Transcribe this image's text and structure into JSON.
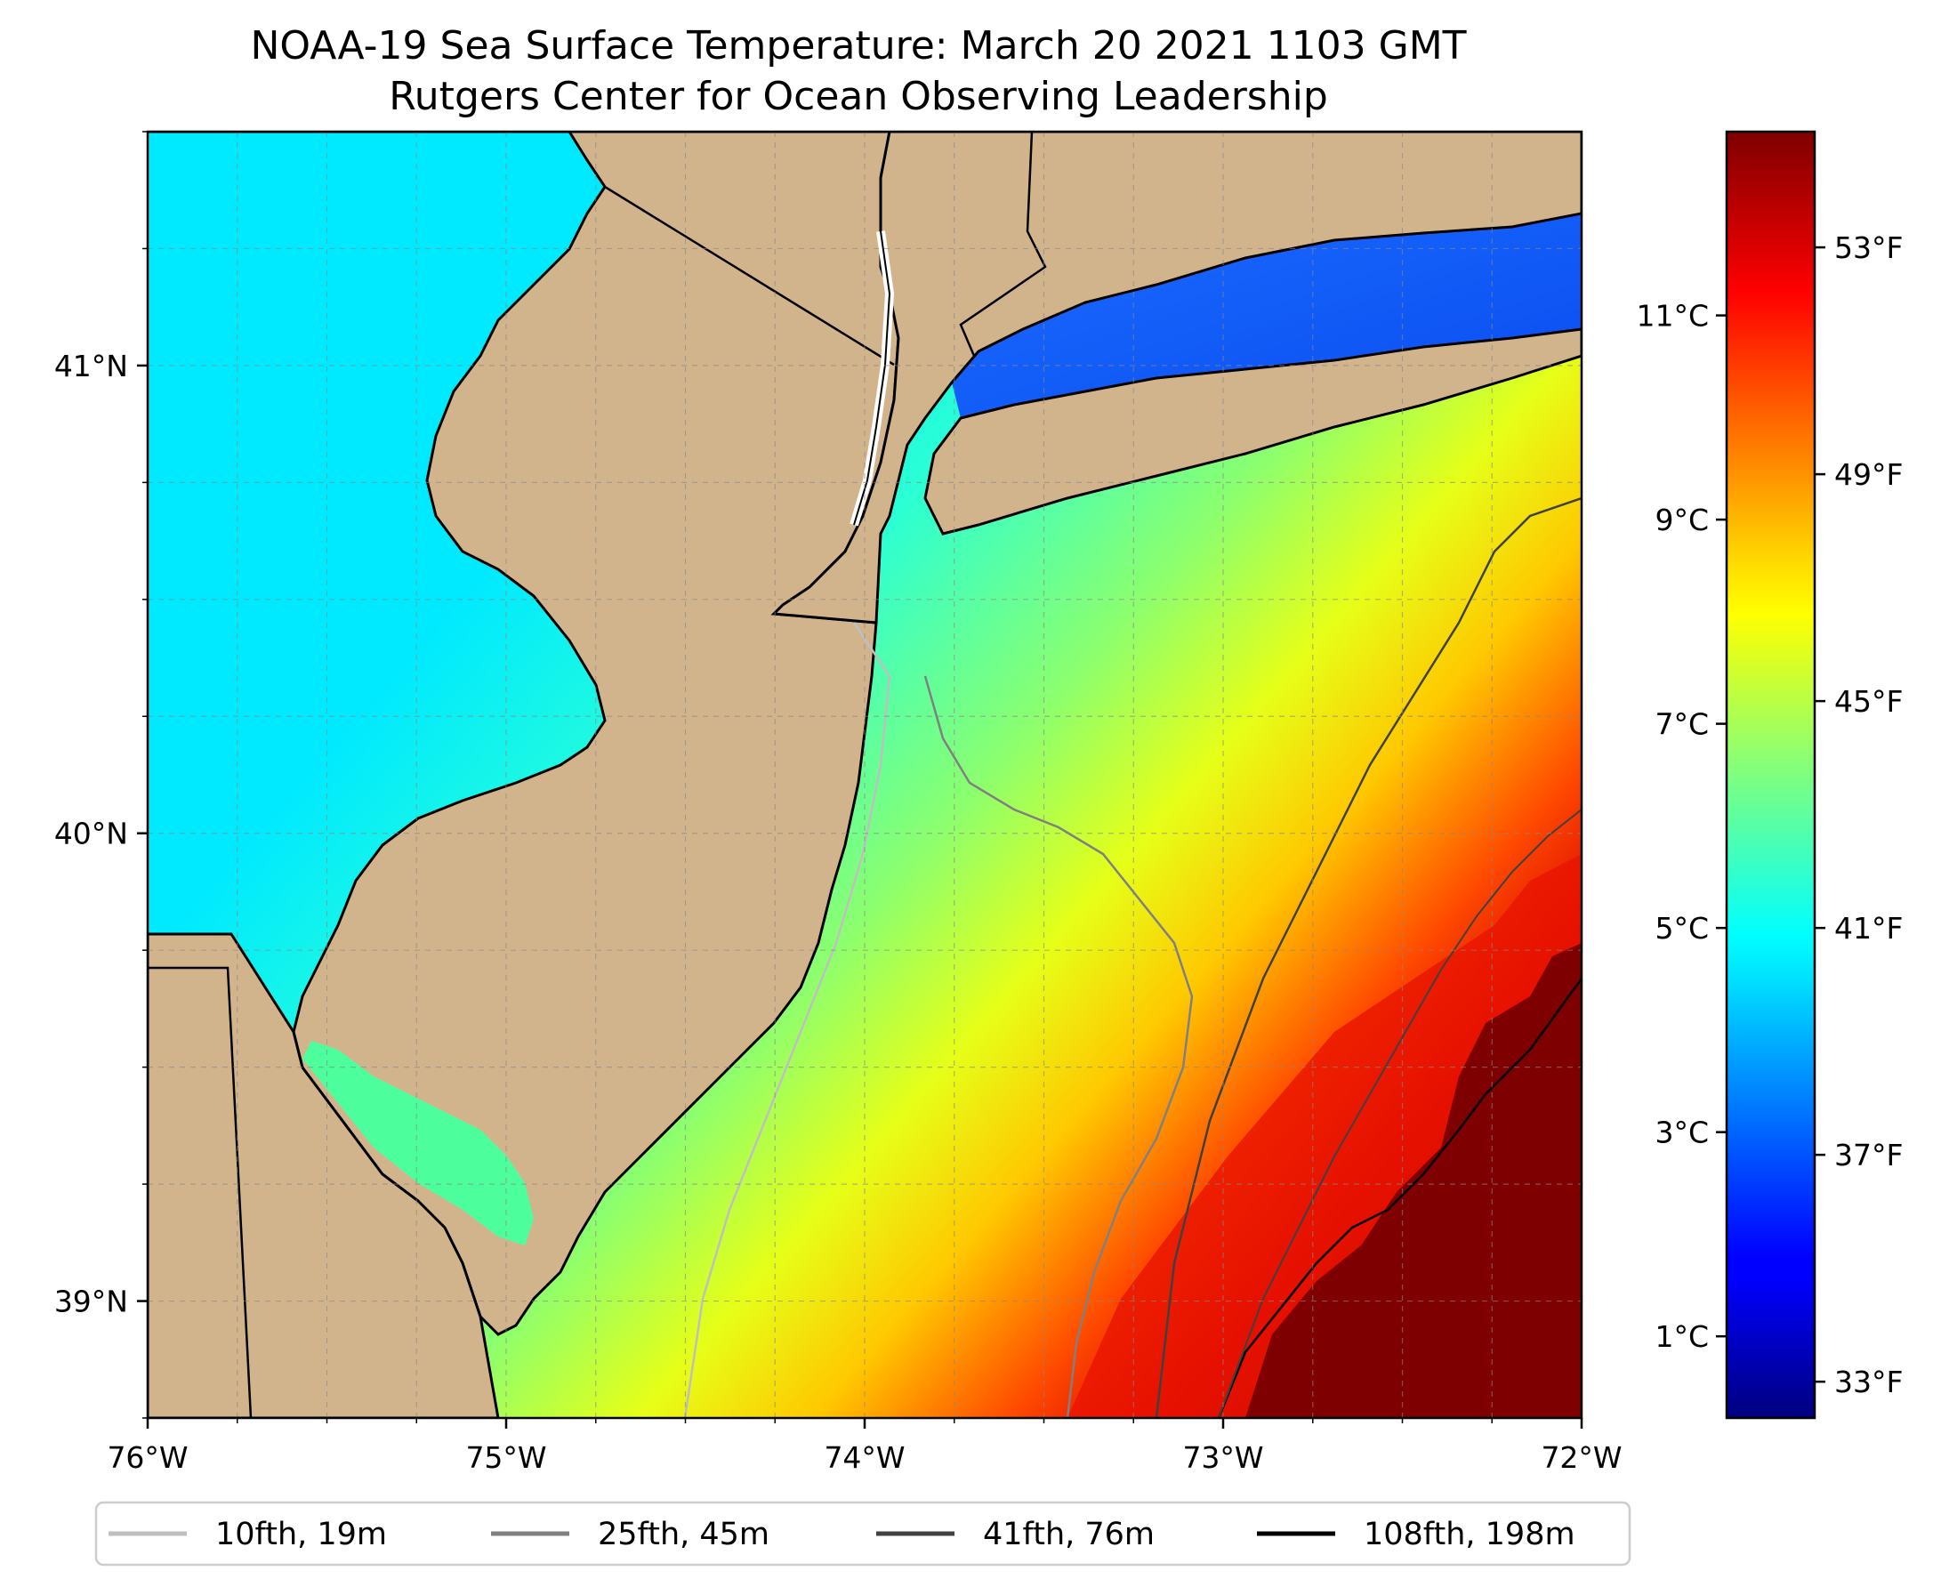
{
  "title": {
    "line1": "NOAA-19 Sea Surface Temperature: March 20 2021 1103 GMT",
    "line2": "Rutgers Center for Ocean Observing Leadership"
  },
  "map": {
    "lon_range": [
      -76,
      -72
    ],
    "lat_range": [
      38.75,
      41.5
    ],
    "land_color": "#d2b48c",
    "x_ticks": [
      "76°W",
      "75°W",
      "74°W",
      "73°W",
      "72°W"
    ],
    "y_ticks": [
      "41°N",
      "40°N",
      "39°N"
    ]
  },
  "colorbar": {
    "colormap": "jet",
    "range_c": [
      0.2,
      12.8
    ],
    "celsius_ticks": [
      "11°C",
      "9°C",
      "7°C",
      "5°C",
      "3°C",
      "1°C"
    ],
    "fahrenheit_ticks": [
      "53°F",
      "49°F",
      "45°F",
      "41°F",
      "37°F",
      "33°F"
    ]
  },
  "legend": {
    "entries": [
      {
        "label": "10fth, 19m",
        "color": "#bfbfbf"
      },
      {
        "label": "25fth, 45m",
        "color": "#808080"
      },
      {
        "label": "41fth, 76m",
        "color": "#404040"
      },
      {
        "label": "108fth, 198m",
        "color": "#000000"
      }
    ]
  }
}
